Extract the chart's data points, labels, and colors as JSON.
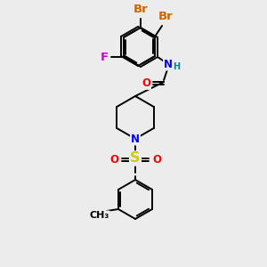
{
  "background_color": "#ececec",
  "bond_color": "#000000",
  "atom_colors": {
    "Br": "#cc6600",
    "F": "#cc00cc",
    "O": "#ff0000",
    "N": "#0000ff",
    "H": "#008888",
    "S": "#cccc00",
    "C": "#000000"
  },
  "font_size_atoms": 8.5,
  "fig_size": [
    3.0,
    3.0
  ],
  "dpi": 100
}
